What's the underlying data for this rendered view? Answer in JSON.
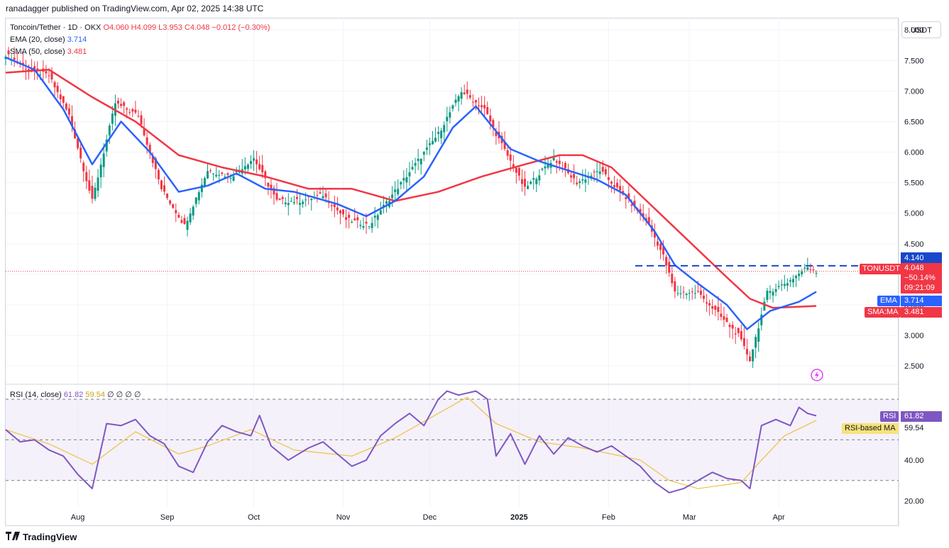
{
  "publisher": "ranadagger published on TradingView.com, Apr 02, 2025 14:38 UTC",
  "legend": {
    "symbol": "Toncoin/Tether · 1D · OKX",
    "ohlc": {
      "O": "4.060",
      "H": "4.099",
      "L": "3.953",
      "C": "4.048",
      "chg": "−0.012 (−0.30%)"
    },
    "ema_label": "EMA (20, close)",
    "ema_value": "3.714",
    "sma_label": "SMA (50, close)",
    "sma_value": "3.481",
    "rsi_label": "RSI (14, close)",
    "rsi_value": "61.82",
    "rsi_ma_value": "59.54",
    "rsi_extra": "∅ ∅ ∅ ∅"
  },
  "currency": "USDT",
  "price_labels": {
    "resistance": "4.140",
    "symbol": "TONUSDT",
    "last": "4.048",
    "change": "−50.14%",
    "countdown": "09:21:09",
    "ema_tag": "EMA",
    "ema": "3.714",
    "sma_tag": "SMA:MA",
    "sma": "3.481",
    "rsi_tag": "RSI",
    "rsi": "61.82",
    "rsima_tag": "RSI-based MA",
    "rsima": "59.54"
  },
  "footer": "TradingView",
  "colors": {
    "up": "#089981",
    "down": "#f23645",
    "ema": "#2962ff",
    "sma": "#f23645",
    "rsi": "#7e57c2",
    "rsi_ma": "#f0c040",
    "band": "#ede7f6"
  },
  "chart_data": [
    {
      "type": "line",
      "title": "Toncoin/Tether · 1D · OKX",
      "x": [
        "Aug",
        "Sep",
        "Oct",
        "Nov",
        "Dec",
        "2025",
        "Feb",
        "Mar",
        "Apr"
      ],
      "ylim": [
        2.2,
        8.2
      ],
      "yticks": [
        2.5,
        3.0,
        3.5,
        4.0,
        4.5,
        5.0,
        5.5,
        6.0,
        6.5,
        7.0,
        7.5,
        8.0
      ],
      "price_path": [
        [
          0,
          7.6
        ],
        [
          8,
          7.35
        ],
        [
          15,
          7.25
        ],
        [
          22,
          6.6
        ],
        [
          30,
          5.2
        ],
        [
          38,
          6.8
        ],
        [
          46,
          6.6
        ],
        [
          54,
          5.4
        ],
        [
          62,
          4.8
        ],
        [
          70,
          5.7
        ],
        [
          78,
          5.6
        ],
        [
          86,
          5.9
        ],
        [
          94,
          5.2
        ],
        [
          102,
          5.2
        ],
        [
          110,
          5.3
        ],
        [
          118,
          4.9
        ],
        [
          126,
          4.8
        ],
        [
          134,
          5.3
        ],
        [
          142,
          5.8
        ],
        [
          150,
          6.3
        ],
        [
          158,
          7.0
        ],
        [
          166,
          6.7
        ],
        [
          170,
          6.3
        ],
        [
          180,
          5.4
        ],
        [
          190,
          5.9
        ],
        [
          198,
          5.5
        ],
        [
          206,
          5.7
        ],
        [
          214,
          5.3
        ],
        [
          222,
          4.9
        ],
        [
          228,
          4.3
        ],
        [
          232,
          3.7
        ],
        [
          240,
          3.7
        ],
        [
          248,
          3.3
        ],
        [
          254,
          3.0
        ],
        [
          258,
          2.6
        ],
        [
          264,
          3.7
        ],
        [
          272,
          3.9
        ],
        [
          278,
          4.12
        ],
        [
          281,
          4.05
        ]
      ],
      "ema_path": [
        [
          0,
          7.55
        ],
        [
          10,
          7.35
        ],
        [
          20,
          6.7
        ],
        [
          30,
          5.8
        ],
        [
          40,
          6.5
        ],
        [
          50,
          6.0
        ],
        [
          60,
          5.35
        ],
        [
          70,
          5.45
        ],
        [
          80,
          5.65
        ],
        [
          90,
          5.4
        ],
        [
          100,
          5.35
        ],
        [
          115,
          5.15
        ],
        [
          125,
          4.95
        ],
        [
          135,
          5.2
        ],
        [
          145,
          5.6
        ],
        [
          155,
          6.4
        ],
        [
          163,
          6.75
        ],
        [
          175,
          6.05
        ],
        [
          185,
          5.85
        ],
        [
          195,
          5.7
        ],
        [
          205,
          5.55
        ],
        [
          215,
          5.3
        ],
        [
          225,
          4.7
        ],
        [
          232,
          4.15
        ],
        [
          240,
          3.85
        ],
        [
          250,
          3.5
        ],
        [
          257,
          3.1
        ],
        [
          265,
          3.4
        ],
        [
          275,
          3.55
        ],
        [
          281,
          3.714
        ]
      ],
      "sma_path": [
        [
          0,
          7.3
        ],
        [
          15,
          7.35
        ],
        [
          30,
          6.9
        ],
        [
          45,
          6.5
        ],
        [
          60,
          5.95
        ],
        [
          75,
          5.75
        ],
        [
          90,
          5.6
        ],
        [
          105,
          5.4
        ],
        [
          120,
          5.4
        ],
        [
          135,
          5.2
        ],
        [
          150,
          5.35
        ],
        [
          165,
          5.6
        ],
        [
          180,
          5.8
        ],
        [
          192,
          5.95
        ],
        [
          200,
          5.95
        ],
        [
          210,
          5.75
        ],
        [
          220,
          5.3
        ],
        [
          230,
          4.85
        ],
        [
          240,
          4.4
        ],
        [
          250,
          3.95
        ],
        [
          258,
          3.6
        ],
        [
          266,
          3.45
        ],
        [
          281,
          3.481
        ]
      ],
      "resistance": 4.14,
      "last_price": 4.048
    },
    {
      "type": "line",
      "title": "RSI (14, close)",
      "ylim": [
        17,
        77
      ],
      "yticks": [
        20.0,
        40.0
      ],
      "bands": [
        30,
        70
      ],
      "rsi_path": [
        [
          0,
          55
        ],
        [
          5,
          49
        ],
        [
          10,
          50
        ],
        [
          15,
          45
        ],
        [
          20,
          42
        ],
        [
          25,
          33
        ],
        [
          30,
          26
        ],
        [
          35,
          58
        ],
        [
          40,
          57
        ],
        [
          45,
          60
        ],
        [
          50,
          52
        ],
        [
          55,
          48
        ],
        [
          60,
          37
        ],
        [
          65,
          34
        ],
        [
          70,
          49
        ],
        [
          75,
          57
        ],
        [
          80,
          54
        ],
        [
          85,
          52
        ],
        [
          88,
          62
        ],
        [
          92,
          47
        ],
        [
          98,
          40
        ],
        [
          105,
          46
        ],
        [
          110,
          49
        ],
        [
          115,
          43
        ],
        [
          120,
          37
        ],
        [
          125,
          40
        ],
        [
          130,
          52
        ],
        [
          135,
          58
        ],
        [
          140,
          63
        ],
        [
          145,
          57
        ],
        [
          150,
          70
        ],
        [
          153,
          74
        ],
        [
          157,
          72
        ],
        [
          163,
          74
        ],
        [
          167,
          70
        ],
        [
          170,
          42
        ],
        [
          175,
          53
        ],
        [
          180,
          38
        ],
        [
          185,
          52
        ],
        [
          190,
          43
        ],
        [
          195,
          51
        ],
        [
          200,
          47
        ],
        [
          205,
          44
        ],
        [
          210,
          47
        ],
        [
          215,
          42
        ],
        [
          220,
          37
        ],
        [
          225,
          29
        ],
        [
          230,
          24
        ],
        [
          235,
          26
        ],
        [
          240,
          30
        ],
        [
          245,
          34
        ],
        [
          250,
          31
        ],
        [
          255,
          30
        ],
        [
          258,
          26
        ],
        [
          262,
          57
        ],
        [
          267,
          60
        ],
        [
          272,
          57
        ],
        [
          275,
          66
        ],
        [
          278,
          63
        ],
        [
          281,
          61.82
        ]
      ],
      "rsima_path": [
        [
          0,
          55
        ],
        [
          15,
          48
        ],
        [
          30,
          38
        ],
        [
          45,
          54
        ],
        [
          60,
          43
        ],
        [
          70,
          47
        ],
        [
          85,
          55
        ],
        [
          100,
          45
        ],
        [
          120,
          42
        ],
        [
          135,
          51
        ],
        [
          150,
          63
        ],
        [
          160,
          71
        ],
        [
          170,
          58
        ],
        [
          185,
          49
        ],
        [
          200,
          46
        ],
        [
          220,
          40
        ],
        [
          230,
          30
        ],
        [
          240,
          26
        ],
        [
          255,
          29
        ],
        [
          262,
          40
        ],
        [
          270,
          52
        ],
        [
          281,
          59.54
        ]
      ]
    }
  ]
}
